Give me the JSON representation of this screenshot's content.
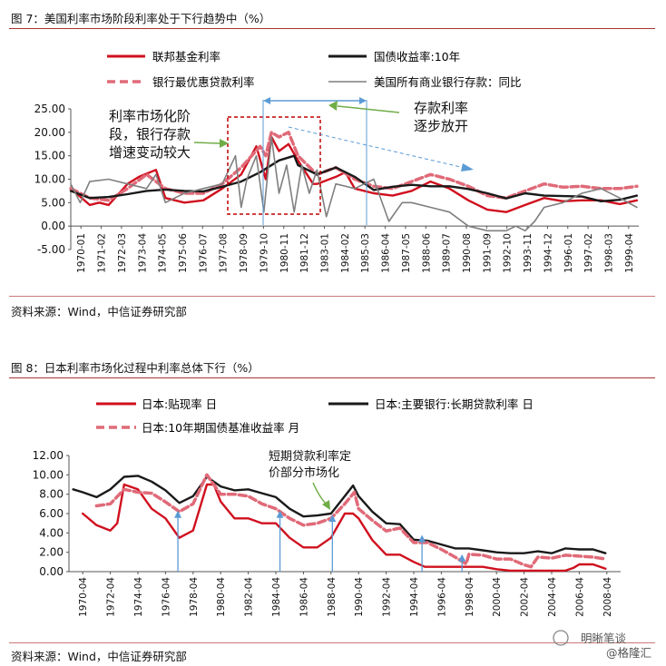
{
  "figure7": {
    "title": "图 7：美国利率市场阶段利率处于下行趋势中（%）",
    "source": "资料来源：Wind，中信证券研究部",
    "annotations": [
      "利率市场化阶",
      "段，银行存款",
      "增速变动较大",
      "存款利率",
      "逐步放开"
    ],
    "chart_data": {
      "type": "line",
      "ylim": [
        -5,
        25
      ],
      "yticks": [
        "25.00",
        "20.00",
        "15.00",
        "10.00",
        "5.00",
        "0.00",
        "-5.00"
      ],
      "xticks": [
        "1970-01",
        "1971-02",
        "1972-03",
        "1973-04",
        "1974-05",
        "1975-06",
        "1976-07",
        "1977-08",
        "1978-09",
        "1979-10",
        "1980-11",
        "1981-12",
        "1983-01",
        "1984-02",
        "1985-03",
        "1986-04",
        "1987-05",
        "1988-06",
        "1989-07",
        "1990-08",
        "1991-09",
        "1992-10",
        "1993-11",
        "1994-12",
        "1996-01",
        "1997-02",
        "1998-03",
        "1999-04"
      ],
      "series": [
        {
          "name": "联邦基金利率",
          "color": "#d0101e",
          "style": "solid",
          "x": [
            1970,
            1971,
            1971.5,
            1972,
            1973,
            1973.6,
            1974.5,
            1975,
            1976,
            1977,
            1978,
            1979,
            1979.8,
            1980.3,
            1980.6,
            1981,
            1981.5,
            1982,
            1982.8,
            1983,
            1984,
            1984.5,
            1985,
            1986,
            1987,
            1988,
            1989,
            1990,
            1991,
            1992,
            1993,
            1994,
            1995,
            1996,
            1997,
            1998,
            1999,
            1999.9
          ],
          "values": [
            8,
            4.5,
            5,
            4.5,
            9,
            10.5,
            12,
            6,
            5,
            5.5,
            8,
            11,
            17,
            10,
            19,
            16,
            17.5,
            14,
            9,
            9,
            10.5,
            11.5,
            8,
            7,
            6.5,
            7.5,
            9.5,
            8,
            5.5,
            3.5,
            3,
            4.5,
            6,
            5.3,
            5.5,
            5.5,
            4.7,
            5.5
          ]
        },
        {
          "name": "银行最优惠贷款利率",
          "color": "#e06a78",
          "style": "dashed",
          "x": [
            1970,
            1971,
            1972,
            1973,
            1974,
            1975,
            1976,
            1977,
            1978,
            1979,
            1980,
            1980.3,
            1980.6,
            1981,
            1981.5,
            1982,
            1983,
            1984,
            1985,
            1986,
            1987,
            1988,
            1989,
            1990,
            1991,
            1992,
            1993,
            1994,
            1995,
            1996,
            1997,
            1998,
            1999,
            1999.9
          ],
          "values": [
            8,
            6,
            5.5,
            8,
            11,
            8,
            7,
            7,
            9,
            12.5,
            17,
            15,
            20,
            19,
            20,
            15,
            11,
            12.5,
            10,
            8.5,
            8,
            9.5,
            11,
            10,
            8.5,
            6.5,
            6,
            7.5,
            9,
            8.3,
            8.5,
            8,
            8,
            8.5
          ]
        },
        {
          "name": "国债收益率:10年",
          "color": "#1a1a1a",
          "style": "solid",
          "x": [
            1970,
            1971,
            1972,
            1973,
            1974,
            1975,
            1976,
            1977,
            1978,
            1979,
            1980,
            1981,
            1981.8,
            1982,
            1983,
            1984,
            1985,
            1986,
            1987,
            1988,
            1989,
            1990,
            1991,
            1992,
            1993,
            1994,
            1995,
            1996,
            1997,
            1998,
            1999,
            1999.9
          ],
          "values": [
            7.5,
            6,
            6.2,
            6.8,
            7.5,
            7.8,
            7.5,
            7.4,
            8.4,
            9.5,
            11.5,
            14,
            15,
            13,
            11,
            12.5,
            10.5,
            7.7,
            8.4,
            8.8,
            8.5,
            8.5,
            7.9,
            7,
            5.9,
            7,
            6.5,
            6.4,
            6.3,
            5.3,
            5.6,
            6.5
          ]
        },
        {
          "name": "美国所有商业银行存款：同比",
          "color": "#7f7f7f",
          "style": "solid",
          "x": [
            1970,
            1970.5,
            1971,
            1972,
            1973,
            1974,
            1974.5,
            1975,
            1976,
            1977,
            1978,
            1978.7,
            1979,
            1979.3,
            1979.8,
            1980.2,
            1980.6,
            1981,
            1981.4,
            1981.8,
            1982.2,
            1982.6,
            1983,
            1983.5,
            1984,
            1985,
            1986,
            1986.8,
            1987.5,
            1988,
            1989,
            1990,
            1991,
            1992,
            1993,
            1993.5,
            1994,
            1994.5,
            1995,
            1996,
            1997,
            1998,
            1999,
            1999.9
          ],
          "values": [
            9,
            5,
            9.5,
            10,
            9,
            8,
            11,
            5,
            7,
            8,
            9,
            15,
            4,
            10,
            15,
            3,
            19,
            7,
            13,
            3,
            13,
            7,
            12,
            2,
            9,
            8,
            10,
            1,
            5,
            5,
            4,
            3,
            0,
            -1,
            -1,
            0,
            -1,
            1,
            4,
            5,
            7,
            8,
            6,
            4
          ]
        }
      ]
    }
  },
  "figure8": {
    "title": "图 8：日本利率市场化过程中利率总体下行（%）",
    "source": "资料来源：Wind，中信证券研究部",
    "annotations": [
      "短期贷款利率定",
      "价部分市场化"
    ],
    "watermark": [
      "明晰笔谈",
      "@格隆汇"
    ],
    "chart_data": {
      "type": "line",
      "ylim": [
        0,
        12
      ],
      "yticks": [
        "12.00",
        "10.00",
        "8.00",
        "6.00",
        "4.00",
        "2.00",
        "0.00"
      ],
      "xticks": [
        "1970-04",
        "1972-04",
        "1974-04",
        "1976-04",
        "1978-04",
        "1980-04",
        "1982-04",
        "1984-04",
        "1986-04",
        "1988-04",
        "1990-04",
        "1992-04",
        "1994-04",
        "1996-04",
        "1998-04",
        "2000-04",
        "2002-04",
        "2004-04",
        "2006-04",
        "2008-04"
      ],
      "series": [
        {
          "name": "日本:贴现率 日",
          "color": "#d0101e",
          "style": "solid",
          "x": [
            1971,
            1972,
            1973,
            1973.5,
            1974,
            1975,
            1976,
            1977,
            1978,
            1979,
            1980,
            1980.5,
            1981,
            1982,
            1983,
            1984,
            1985,
            1986,
            1987,
            1988,
            1989,
            1990,
            1990.6,
            1991,
            1992,
            1993,
            1994,
            1995,
            1995.8,
            1996,
            1998,
            2000,
            2001,
            2002,
            2004,
            2006,
            2006.6,
            2007,
            2008,
            2008.9
          ],
          "values": [
            6,
            4.8,
            4.25,
            5,
            9,
            8.5,
            6.5,
            5.5,
            3.5,
            4.25,
            9,
            9,
            7.25,
            5.5,
            5.5,
            5,
            5,
            3.5,
            2.5,
            2.5,
            3.5,
            6,
            6,
            5.5,
            3.25,
            1.75,
            1.75,
            1,
            0.5,
            0.5,
            0.5,
            0.5,
            0.25,
            0.1,
            0.1,
            0.1,
            0.4,
            0.75,
            0.75,
            0.3
          ]
        },
        {
          "name": "日本:主要银行:长期贷款利率 日",
          "color": "#1a1a1a",
          "style": "solid",
          "x": [
            1970.3,
            1971,
            1972,
            1973,
            1974,
            1975,
            1976,
            1977,
            1978,
            1979,
            1980,
            1981,
            1982,
            1983,
            1984,
            1985,
            1986,
            1987,
            1988,
            1989,
            1990,
            1990.6,
            1991,
            1992,
            1993,
            1994,
            1995,
            1996,
            1997,
            1998,
            1999,
            2000,
            2001,
            2002,
            2003,
            2004,
            2005,
            2006,
            2007,
            2008,
            2008.9
          ],
          "values": [
            8.5,
            8.2,
            7.7,
            8.5,
            9.8,
            9.9,
            9.3,
            8.4,
            7.1,
            7.8,
            9.8,
            8.8,
            8.4,
            8.5,
            8.1,
            7.7,
            6.5,
            5.7,
            5.8,
            6,
            7.8,
            8.9,
            7.8,
            6.2,
            5,
            4.9,
            3.3,
            3.2,
            2.8,
            2.4,
            2.4,
            2.2,
            2,
            1.9,
            1.9,
            2.1,
            1.9,
            2.4,
            2.3,
            2.3,
            1.9
          ]
        },
        {
          "name": "日本:10年期国债基准收益率 月",
          "color": "#e06a78",
          "style": "dashed",
          "x": [
            1972,
            1973,
            1974,
            1975,
            1976,
            1977,
            1978,
            1979,
            1980,
            1981,
            1982,
            1983,
            1984,
            1985,
            1986,
            1987,
            1988,
            1989,
            1990,
            1990.7,
            1991,
            1992,
            1993,
            1994,
            1995,
            1996,
            1997,
            1998,
            1998.8,
            1999,
            2000,
            2001,
            2002,
            2003,
            2003.5,
            2004,
            2005,
            2006,
            2007,
            2008,
            2008.9
          ],
          "values": [
            6.8,
            7,
            8.5,
            8.2,
            8.1,
            7.2,
            6.2,
            7,
            10,
            8,
            8,
            7.8,
            7,
            6.5,
            5.5,
            4.8,
            5,
            5.5,
            7,
            8.2,
            6.5,
            5.3,
            4.2,
            4.5,
            3,
            3,
            2.3,
            1.5,
            0.8,
            1.8,
            1.7,
            1.3,
            1.3,
            0.7,
            0.5,
            1.5,
            1.4,
            1.7,
            1.6,
            1.5,
            1.3
          ]
        }
      ]
    }
  }
}
